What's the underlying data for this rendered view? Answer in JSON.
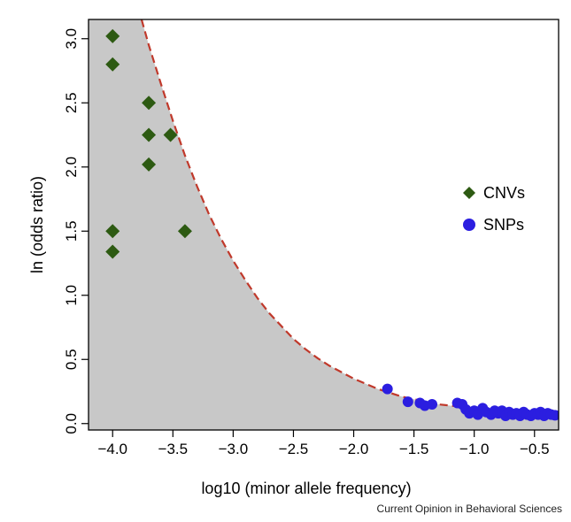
{
  "chart_data": {
    "type": "scatter",
    "xlabel": "log10 (minor allele frequency)",
    "ylabel": "ln (odds ratio)",
    "xlim": [
      -4.2,
      -0.3
    ],
    "ylim": [
      -0.05,
      3.15
    ],
    "x_ticks": [
      -4.0,
      -3.5,
      -3.0,
      -2.5,
      -2.0,
      -1.5,
      -1.0,
      -0.5
    ],
    "x_tick_labels": [
      "−4.0",
      "−3.5",
      "−3.0",
      "−2.5",
      "−2.0",
      "−1.5",
      "−1.0",
      "−0.5"
    ],
    "y_ticks": [
      0.0,
      0.5,
      1.0,
      1.5,
      2.0,
      2.5,
      3.0
    ],
    "y_tick_labels": [
      "0.0",
      "0.5",
      "1.0",
      "1.5",
      "2.0",
      "2.5",
      "3.0"
    ],
    "grid": false,
    "legend_position": "right",
    "shaded_region": "below-curve",
    "shade_color": "#c8c8c8",
    "curve": {
      "style": "dashed",
      "color": "#c0392b",
      "x": [
        -3.76,
        -3.7,
        -3.6,
        -3.5,
        -3.4,
        -3.3,
        -3.2,
        -3.1,
        -3.0,
        -2.9,
        -2.8,
        -2.7,
        -2.6,
        -2.5,
        -2.4,
        -2.3,
        -2.2,
        -2.1,
        -2.0,
        -1.9,
        -1.8,
        -1.7,
        -1.6,
        -1.5,
        -1.4,
        -1.3,
        -1.2,
        -1.1,
        -1.0,
        -0.9,
        -0.8,
        -0.7,
        -0.6,
        -0.5,
        -0.4,
        -0.3
      ],
      "y": [
        3.15,
        2.95,
        2.65,
        2.36,
        2.09,
        1.85,
        1.63,
        1.44,
        1.27,
        1.12,
        0.98,
        0.86,
        0.76,
        0.66,
        0.58,
        0.51,
        0.45,
        0.4,
        0.35,
        0.31,
        0.27,
        0.24,
        0.21,
        0.19,
        0.17,
        0.15,
        0.14,
        0.13,
        0.11,
        0.1,
        0.09,
        0.085,
        0.08,
        0.075,
        0.07,
        0.065
      ]
    },
    "series": [
      {
        "name": "CNVs",
        "marker": "diamond",
        "color": "#2d5a12",
        "points": [
          {
            "x": -4.0,
            "y": 3.02
          },
          {
            "x": -4.0,
            "y": 2.8
          },
          {
            "x": -4.0,
            "y": 1.5
          },
          {
            "x": -4.0,
            "y": 1.34
          },
          {
            "x": -3.7,
            "y": 2.5
          },
          {
            "x": -3.7,
            "y": 2.25
          },
          {
            "x": -3.7,
            "y": 2.02
          },
          {
            "x": -3.52,
            "y": 2.25
          },
          {
            "x": -3.4,
            "y": 1.5
          }
        ]
      },
      {
        "name": "SNPs",
        "marker": "circle",
        "color": "#2b1ee0",
        "points": [
          {
            "x": -1.72,
            "y": 0.27
          },
          {
            "x": -1.55,
            "y": 0.17
          },
          {
            "x": -1.45,
            "y": 0.16
          },
          {
            "x": -1.41,
            "y": 0.14
          },
          {
            "x": -1.35,
            "y": 0.15
          },
          {
            "x": -1.14,
            "y": 0.16
          },
          {
            "x": -1.1,
            "y": 0.15
          },
          {
            "x": -1.07,
            "y": 0.11
          },
          {
            "x": -1.04,
            "y": 0.08
          },
          {
            "x": -1.0,
            "y": 0.1
          },
          {
            "x": -0.97,
            "y": 0.07
          },
          {
            "x": -0.93,
            "y": 0.12
          },
          {
            "x": -0.9,
            "y": 0.09
          },
          {
            "x": -0.86,
            "y": 0.07
          },
          {
            "x": -0.83,
            "y": 0.1
          },
          {
            "x": -0.8,
            "y": 0.08
          },
          {
            "x": -0.77,
            "y": 0.1
          },
          {
            "x": -0.74,
            "y": 0.06
          },
          {
            "x": -0.71,
            "y": 0.09
          },
          {
            "x": -0.68,
            "y": 0.07
          },
          {
            "x": -0.65,
            "y": 0.08
          },
          {
            "x": -0.62,
            "y": 0.06
          },
          {
            "x": -0.59,
            "y": 0.09
          },
          {
            "x": -0.56,
            "y": 0.07
          },
          {
            "x": -0.53,
            "y": 0.06
          },
          {
            "x": -0.5,
            "y": 0.08
          },
          {
            "x": -0.47,
            "y": 0.07
          },
          {
            "x": -0.45,
            "y": 0.09
          },
          {
            "x": -0.42,
            "y": 0.06
          },
          {
            "x": -0.39,
            "y": 0.08
          },
          {
            "x": -0.36,
            "y": 0.07
          },
          {
            "x": -0.33,
            "y": 0.065
          }
        ]
      }
    ]
  },
  "footer": {
    "credit": "Current Opinion in Behavioral Sciences"
  }
}
